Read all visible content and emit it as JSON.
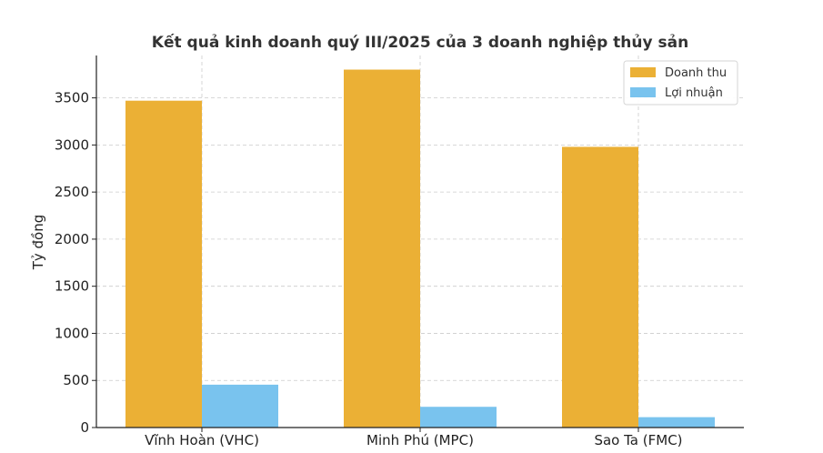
{
  "chart_data": {
    "type": "bar",
    "title": "Kết quả kinh doanh quý III/2025 của 3 doanh nghiệp thủy sản",
    "xlabel": "",
    "ylabel": "Tỷ đồng",
    "categories": [
      "Vĩnh Hoàn (VHC)",
      "Minh Phú (MPC)",
      "Sao Ta (FMC)"
    ],
    "series": [
      {
        "name": "Doanh thu",
        "color": "#ebb035",
        "values": [
          3470,
          3800,
          2980
        ]
      },
      {
        "name": "Lợi nhuận",
        "color": "#79c3ee",
        "values": [
          455,
          220,
          110
        ]
      }
    ],
    "ylim": [
      0,
      3950
    ],
    "yticks": [
      0,
      500,
      1000,
      1500,
      2000,
      2500,
      3000,
      3500
    ],
    "grid": true,
    "legend_position": "top-right"
  }
}
